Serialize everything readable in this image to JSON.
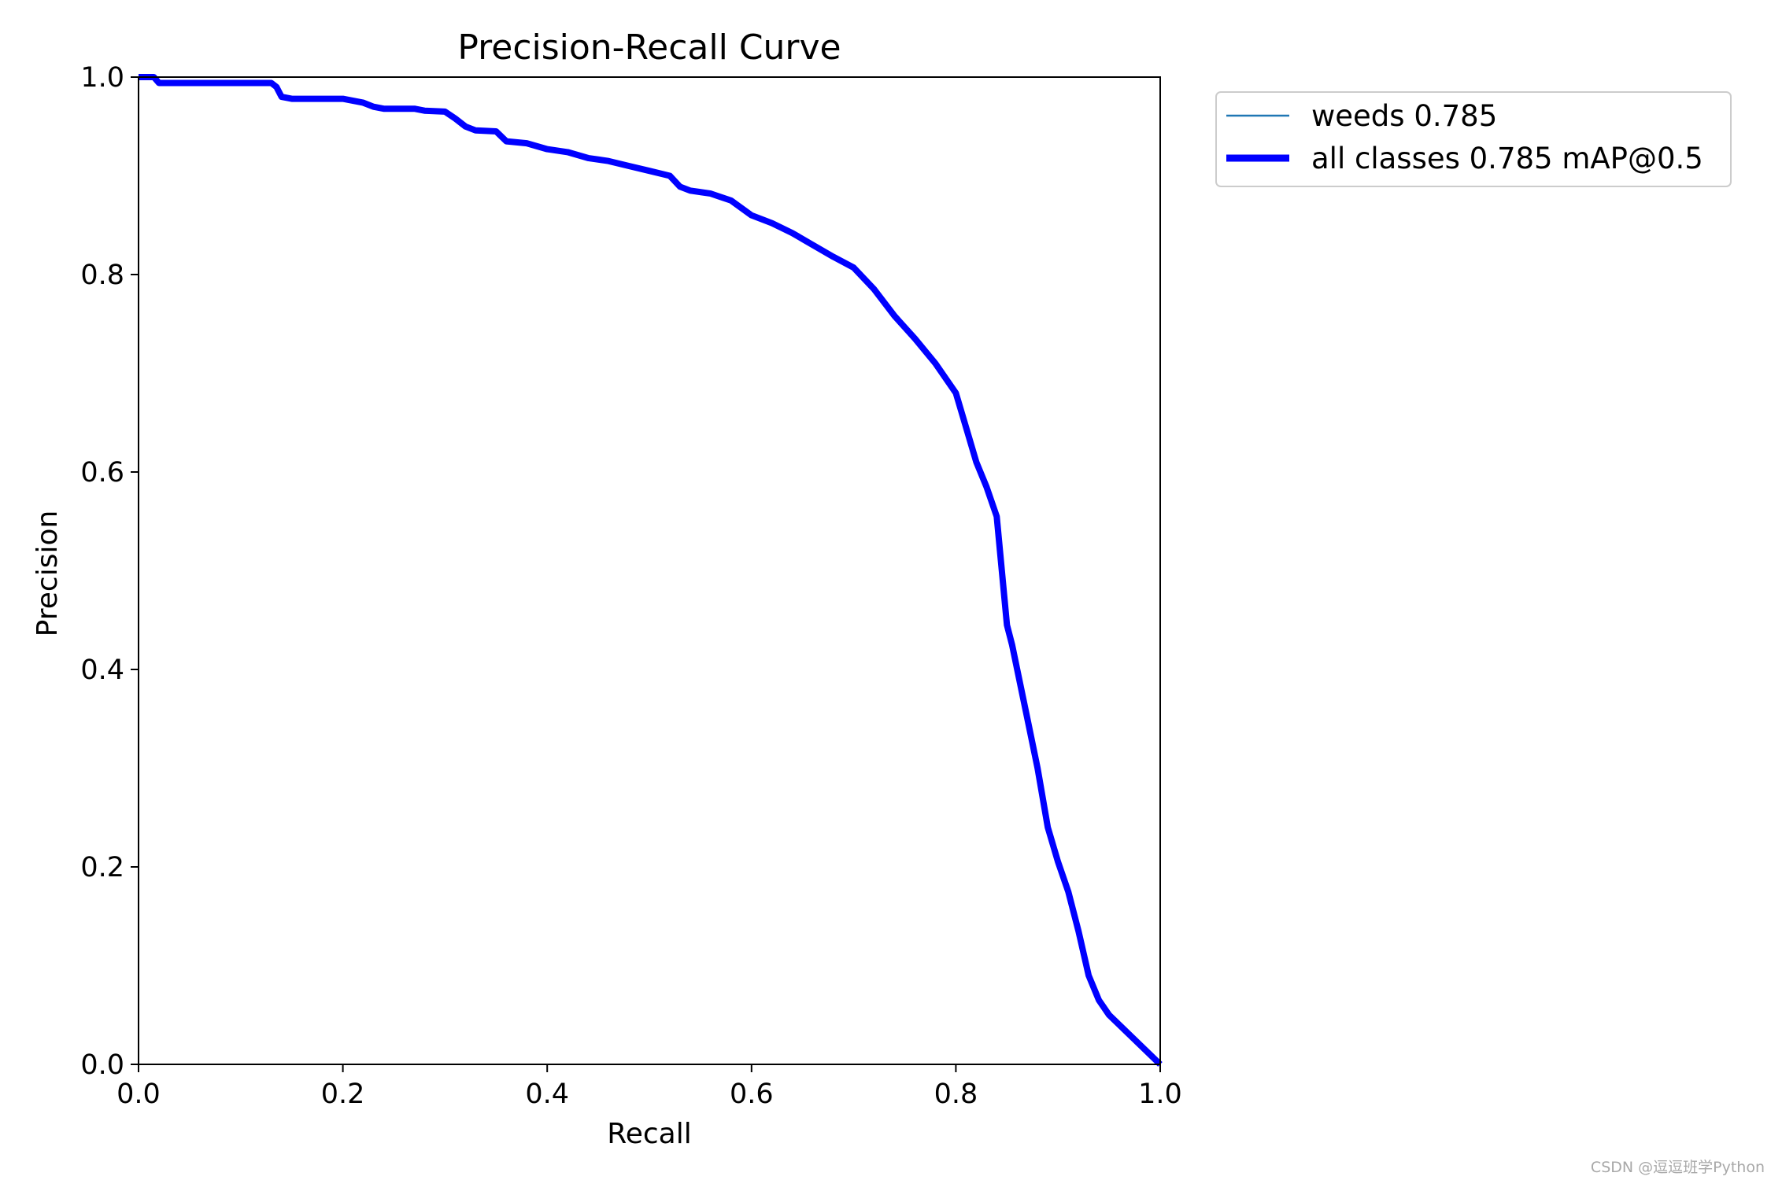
{
  "chart_data": {
    "type": "line",
    "title": "Precision-Recall Curve",
    "xlabel": "Recall",
    "ylabel": "Precision",
    "xlim": [
      0.0,
      1.0
    ],
    "ylim": [
      0.0,
      1.0
    ],
    "xticks": [
      "0.0",
      "0.2",
      "0.4",
      "0.6",
      "0.8",
      "1.0"
    ],
    "yticks": [
      "0.0",
      "0.2",
      "0.4",
      "0.6",
      "0.8",
      "1.0"
    ],
    "grid": false,
    "legend_position": "outside-top-right",
    "series": [
      {
        "name": "weeds 0.785",
        "color": "#1f77b4",
        "style": "thin",
        "x": [
          0.0,
          0.015,
          0.02,
          0.05,
          0.1,
          0.13,
          0.135,
          0.14,
          0.15,
          0.2,
          0.22,
          0.23,
          0.24,
          0.27,
          0.28,
          0.3,
          0.31,
          0.32,
          0.33,
          0.35,
          0.36,
          0.38,
          0.4,
          0.42,
          0.44,
          0.46,
          0.48,
          0.5,
          0.52,
          0.53,
          0.54,
          0.56,
          0.58,
          0.6,
          0.62,
          0.64,
          0.66,
          0.68,
          0.7,
          0.72,
          0.74,
          0.76,
          0.78,
          0.8,
          0.81,
          0.82,
          0.83,
          0.84,
          0.845,
          0.85,
          0.855,
          0.86,
          0.865,
          0.87,
          0.88,
          0.89,
          0.9,
          0.91,
          0.92,
          0.93,
          0.94,
          0.95,
          1.0
        ],
        "y": [
          1.0,
          1.0,
          0.994,
          0.994,
          0.994,
          0.994,
          0.99,
          0.98,
          0.978,
          0.978,
          0.974,
          0.97,
          0.968,
          0.968,
          0.966,
          0.965,
          0.958,
          0.95,
          0.946,
          0.945,
          0.935,
          0.933,
          0.927,
          0.924,
          0.918,
          0.915,
          0.91,
          0.905,
          0.9,
          0.889,
          0.885,
          0.882,
          0.875,
          0.86,
          0.852,
          0.842,
          0.83,
          0.818,
          0.807,
          0.785,
          0.758,
          0.735,
          0.71,
          0.68,
          0.645,
          0.61,
          0.585,
          0.555,
          0.5,
          0.445,
          0.425,
          0.4,
          0.375,
          0.35,
          0.3,
          0.24,
          0.205,
          0.175,
          0.135,
          0.09,
          0.065,
          0.05,
          0.0
        ]
      },
      {
        "name": "all classes 0.785 mAP@0.5",
        "color": "#0000ff",
        "style": "thick",
        "x": [
          0.0,
          0.015,
          0.02,
          0.05,
          0.1,
          0.13,
          0.135,
          0.14,
          0.15,
          0.2,
          0.22,
          0.23,
          0.24,
          0.27,
          0.28,
          0.3,
          0.31,
          0.32,
          0.33,
          0.35,
          0.36,
          0.38,
          0.4,
          0.42,
          0.44,
          0.46,
          0.48,
          0.5,
          0.52,
          0.53,
          0.54,
          0.56,
          0.58,
          0.6,
          0.62,
          0.64,
          0.66,
          0.68,
          0.7,
          0.72,
          0.74,
          0.76,
          0.78,
          0.8,
          0.81,
          0.82,
          0.83,
          0.84,
          0.845,
          0.85,
          0.855,
          0.86,
          0.865,
          0.87,
          0.88,
          0.89,
          0.9,
          0.91,
          0.92,
          0.93,
          0.94,
          0.95,
          1.0
        ],
        "y": [
          1.0,
          1.0,
          0.994,
          0.994,
          0.994,
          0.994,
          0.99,
          0.98,
          0.978,
          0.978,
          0.974,
          0.97,
          0.968,
          0.968,
          0.966,
          0.965,
          0.958,
          0.95,
          0.946,
          0.945,
          0.935,
          0.933,
          0.927,
          0.924,
          0.918,
          0.915,
          0.91,
          0.905,
          0.9,
          0.889,
          0.885,
          0.882,
          0.875,
          0.86,
          0.852,
          0.842,
          0.83,
          0.818,
          0.807,
          0.785,
          0.758,
          0.735,
          0.71,
          0.68,
          0.645,
          0.61,
          0.585,
          0.555,
          0.5,
          0.445,
          0.425,
          0.4,
          0.375,
          0.35,
          0.3,
          0.24,
          0.205,
          0.175,
          0.135,
          0.09,
          0.065,
          0.05,
          0.0
        ]
      }
    ]
  },
  "watermark": "CSDN @逗逗班学Python"
}
